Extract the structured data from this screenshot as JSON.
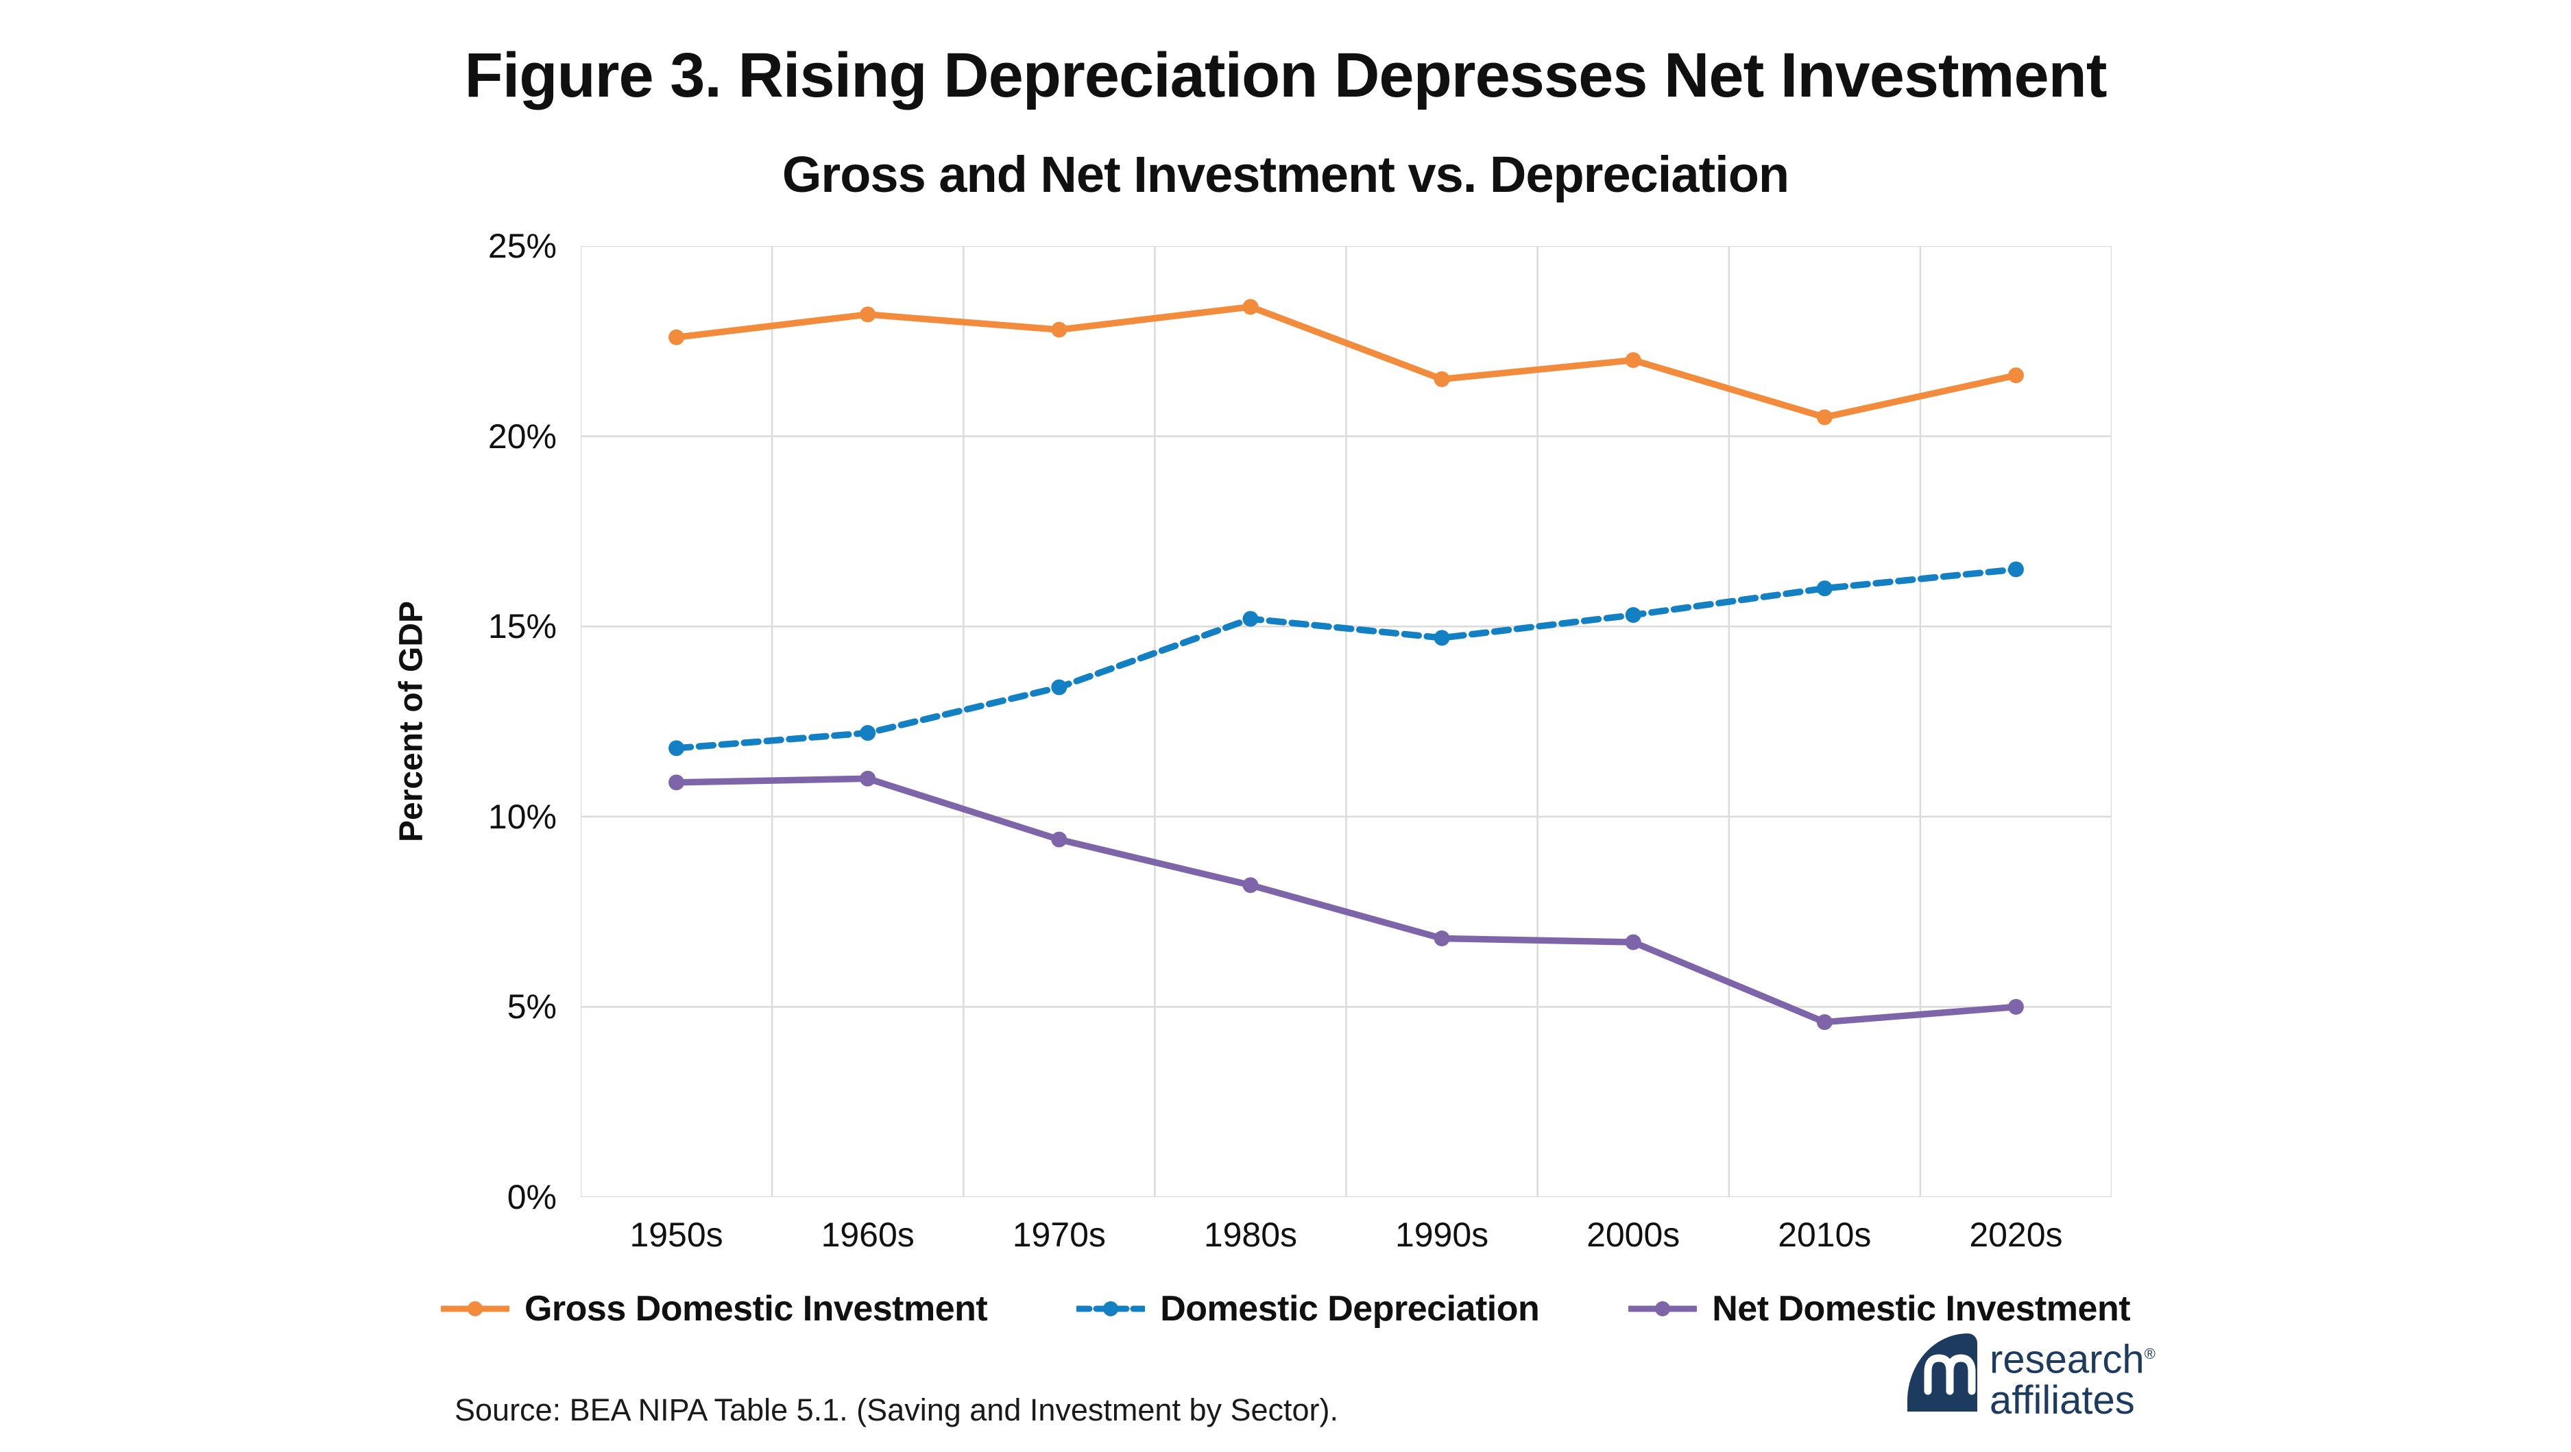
{
  "chart_data": {
    "type": "line",
    "title": "Figure 3. Rising Depreciation Depresses Net Investment",
    "subtitle": "Gross and Net Investment vs. Depreciation",
    "categories": [
      "1950s",
      "1960s",
      "1970s",
      "1980s",
      "1990s",
      "2000s",
      "2010s",
      "2020s"
    ],
    "series": [
      {
        "name": "Gross Domestic Investment",
        "color": "#F28C3C",
        "style": "solid",
        "values": [
          22.6,
          23.2,
          22.8,
          23.4,
          21.5,
          22.0,
          20.5,
          21.6
        ]
      },
      {
        "name": "Domestic Depreciation",
        "color": "#1380C4",
        "style": "dashed",
        "values": [
          11.8,
          12.2,
          13.4,
          15.2,
          14.7,
          15.3,
          16.0,
          16.5
        ]
      },
      {
        "name": "Net Domestic Investment",
        "color": "#7E64A8",
        "style": "solid",
        "values": [
          10.9,
          11.0,
          9.4,
          8.2,
          6.8,
          6.7,
          4.6,
          5.0
        ]
      }
    ],
    "xlabel": "",
    "ylabel": "Percent of GDP",
    "ylim": [
      0,
      25
    ],
    "ytick_step": 5,
    "ytick_labels": [
      "0%",
      "5%",
      "10%",
      "15%",
      "20%",
      "25%"
    ],
    "grid": "both",
    "legend_position": "bottom"
  },
  "footer": {
    "source": "Source: BEA NIPA Table 5.1. (Saving and Investment by Sector)."
  },
  "logo": {
    "line1": "research",
    "line2": "affiliates",
    "registered": "®",
    "color": "#1D3A5F"
  }
}
